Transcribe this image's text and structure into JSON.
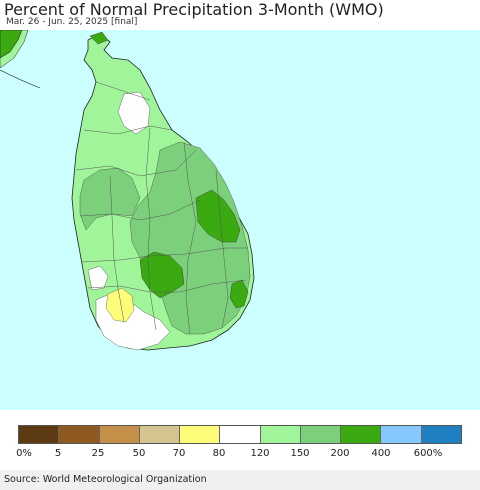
{
  "title": "Percent of Normal Precipitation 3-Month (WMO)",
  "subtitle": "Mar. 26 - Jun. 25, 2025 [final]",
  "source": "Source: World Meteorological Organization",
  "legend": {
    "colors": [
      "#5c3a12",
      "#8e5a20",
      "#c48f48",
      "#d4c490",
      "#fdfd7a",
      "#ffffff",
      "#a0f59a",
      "#7cd07c",
      "#3aaa10",
      "#84c8fd",
      "#1e80c0"
    ],
    "ticks": [
      "0%",
      "5",
      "25",
      "50",
      "70",
      "80",
      "120",
      "150",
      "200",
      "400",
      "600%"
    ]
  },
  "map": {
    "ocean_color": "#ccffff",
    "land_colors": {
      "above_120": "#a0f59a",
      "above_150": "#7cd07c",
      "above_200": "#3aaa10",
      "normal": "#ffffff",
      "below_70": "#fdfd7a"
    }
  }
}
